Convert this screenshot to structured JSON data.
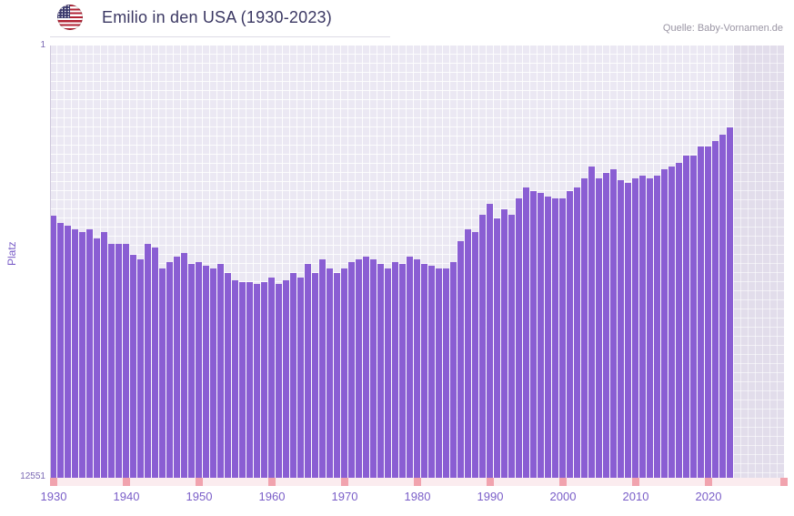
{
  "header": {
    "title": "Emilio in den USA (1930-2023)",
    "source": "Quelle: Baby-Vornamen.de",
    "flag_icon": "us-flag-icon"
  },
  "chart_data": {
    "type": "bar",
    "title": "Emilio in den USA (1930-2023)",
    "xlabel": "",
    "ylabel": "Platz",
    "y_axis": {
      "top_label": "1",
      "bottom_label": "12551",
      "min": 1,
      "max": 12551,
      "scale": "log",
      "inverted": true
    },
    "x_ticks": [
      "1930",
      "1940",
      "1950",
      "1960",
      "1970",
      "1980",
      "1990",
      "2000",
      "2010",
      "2020"
    ],
    "start_year": 1930,
    "end_year": 2023,
    "grid": true,
    "legend": "none",
    "values": [
      41,
      48,
      51,
      55,
      59,
      55,
      68,
      59,
      76,
      76,
      76,
      97,
      107,
      76,
      82,
      130,
      113,
      100,
      93,
      118,
      113,
      122,
      130,
      118,
      144,
      168,
      175,
      175,
      182,
      175,
      159,
      182,
      168,
      144,
      159,
      118,
      144,
      107,
      130,
      144,
      130,
      113,
      107,
      100,
      107,
      118,
      130,
      113,
      118,
      100,
      107,
      118,
      122,
      130,
      130,
      113,
      72,
      55,
      59,
      40,
      32,
      44,
      36,
      40,
      28,
      22,
      24,
      25,
      27,
      28,
      28,
      24,
      22,
      18,
      14,
      18,
      16,
      15,
      19,
      20,
      18,
      17,
      18,
      17,
      15,
      14,
      13,
      11,
      11,
      9,
      9,
      8,
      7,
      6
    ],
    "colors": {
      "bar": "#8a5ed3",
      "plot_bg": "#ebe8f3",
      "future_band": "#e2ddeb",
      "grid": "#ffffff",
      "title": "#3b3863",
      "source": "#9a95a4",
      "tick_label": "#7a5ec8",
      "axis_label": "#7a68b3",
      "axis_strip": "#fbecef",
      "decade_mark": "#f1a3ae"
    }
  }
}
